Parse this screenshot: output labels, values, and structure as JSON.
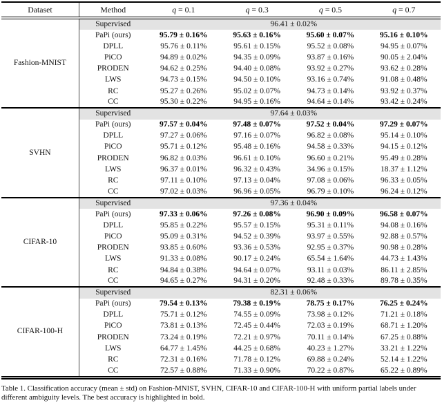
{
  "table": {
    "columns": {
      "dataset": "Dataset",
      "method": "Method",
      "q_headers": [
        {
          "sym": "q",
          "rest": " = 0.1"
        },
        {
          "sym": "q",
          "rest": " = 0.3"
        },
        {
          "sym": "q",
          "rest": " = 0.5"
        },
        {
          "sym": "q",
          "rest": " = 0.7"
        }
      ]
    },
    "sections": [
      {
        "dataset": "Fashion-MNIST",
        "supervised_label": "Supervised",
        "supervised_value": "96.41 ± 0.02%",
        "rows": [
          {
            "method": "PaPi (ours)",
            "bold": true,
            "values": [
              "95.79 ± 0.16%",
              "95.63 ± 0.16%",
              "95.60 ± 0.07%",
              "95.16 ± 0.10%"
            ]
          },
          {
            "method": "DPLL",
            "bold": false,
            "values": [
              "95.76 ± 0.11%",
              "95.61 ± 0.15%",
              "95.52 ± 0.08%",
              "94.95 ± 0.07%"
            ]
          },
          {
            "method": "PiCO",
            "bold": false,
            "values": [
              "94.89 ± 0.02%",
              "94.35 ± 0.09%",
              "93.87 ± 0.16%",
              "90.05 ± 2.04%"
            ]
          },
          {
            "method": "PRODEN",
            "bold": false,
            "values": [
              "94.62 ± 0.25%",
              "94.40 ± 0.08%",
              "93.92 ± 0.27%",
              "93.62 ± 0.28%"
            ]
          },
          {
            "method": "LWS",
            "bold": false,
            "values": [
              "94.73 ± 0.15%",
              "94.50 ± 0.10%",
              "93.16 ± 0.74%",
              "91.08 ± 0.48%"
            ]
          },
          {
            "method": "RC",
            "bold": false,
            "values": [
              "95.27 ± 0.26%",
              "95.02 ± 0.07%",
              "94.73 ± 0.14%",
              "93.92 ± 0.37%"
            ]
          },
          {
            "method": "CC",
            "bold": false,
            "values": [
              "95.30 ± 0.22%",
              "94.95 ± 0.16%",
              "94.64 ± 0.14%",
              "93.42 ± 0.24%"
            ]
          }
        ]
      },
      {
        "dataset": "SVHN",
        "supervised_label": "Supervised",
        "supervised_value": "97.64 ± 0.03%",
        "rows": [
          {
            "method": "PaPi (ours)",
            "bold": true,
            "values": [
              "97.57 ± 0.04%",
              "97.48 ± 0.07%",
              "97.52 ± 0.04%",
              "97.29 ± 0.07%"
            ]
          },
          {
            "method": "DPLL",
            "bold": false,
            "values": [
              "97.27 ± 0.06%",
              "97.16 ± 0.07%",
              "96.82 ± 0.08%",
              "95.14 ± 0.10%"
            ]
          },
          {
            "method": "PiCO",
            "bold": false,
            "values": [
              "95.71 ± 0.12%",
              "95.48 ± 0.16%",
              "94.58 ± 0.33%",
              "94.15 ± 0.12%"
            ]
          },
          {
            "method": "PRODEN",
            "bold": false,
            "values": [
              "96.82 ± 0.03%",
              "96.61 ± 0.10%",
              "96.60 ± 0.21%",
              "95.49 ± 0.28%"
            ]
          },
          {
            "method": "LWS",
            "bold": false,
            "values": [
              "96.37 ± 0.01%",
              "96.32 ± 0.43%",
              "34.96 ± 0.15%",
              "18.37 ± 1.12%"
            ]
          },
          {
            "method": "RC",
            "bold": false,
            "values": [
              "97.11 ± 0.10%",
              "97.13 ± 0.04%",
              "97.08 ± 0.06%",
              "96.33 ± 0.05%"
            ]
          },
          {
            "method": "CC",
            "bold": false,
            "values": [
              "97.02 ± 0.03%",
              "96.96 ± 0.05%",
              "96.79 ± 0.10%",
              "96.24 ± 0.12%"
            ]
          }
        ]
      },
      {
        "dataset": "CIFAR-10",
        "supervised_label": "Supervised",
        "supervised_value": "97.36 ± 0.04%",
        "rows": [
          {
            "method": "PaPi (ours)",
            "bold": true,
            "values": [
              "97.33 ± 0.06%",
              "97.26 ± 0.08%",
              "96.90 ± 0.09%",
              "96.58 ± 0.07%"
            ]
          },
          {
            "method": "DPLL",
            "bold": false,
            "values": [
              "95.85 ± 0.22%",
              "95.57 ± 0.15%",
              "95.31 ± 0.11%",
              "94.08 ± 0.16%"
            ]
          },
          {
            "method": "PiCO",
            "bold": false,
            "values": [
              "95.09 ± 0.31%",
              "94.52 ± 0.39%",
              "93.97 ± 0.55%",
              "92.88 ± 0.57%"
            ]
          },
          {
            "method": "PRODEN",
            "bold": false,
            "values": [
              "93.85 ± 0.60%",
              "93.36 ± 0.53%",
              "92.95 ± 0.37%",
              "90.98 ± 0.28%"
            ]
          },
          {
            "method": "LWS",
            "bold": false,
            "values": [
              "91.33 ± 0.08%",
              "90.17 ± 0.24%",
              "65.54 ± 1.64%",
              "44.73 ± 1.43%"
            ]
          },
          {
            "method": "RC",
            "bold": false,
            "values": [
              "94.84 ± 0.38%",
              "94.64 ± 0.07%",
              "93.11 ± 0.03%",
              "86.11 ± 2.85%"
            ]
          },
          {
            "method": "CC",
            "bold": false,
            "values": [
              "94.65 ± 0.27%",
              "94.31 ± 0.20%",
              "92.48 ± 0.33%",
              "89.78 ± 0.35%"
            ]
          }
        ]
      },
      {
        "dataset": "CIFAR-100-H",
        "supervised_label": "Supervised",
        "supervised_value": "82.31 ± 0.06%",
        "rows": [
          {
            "method": "PaPi (ours)",
            "bold": true,
            "values": [
              "79.54 ± 0.13%",
              "79.38 ± 0.19%",
              "78.75 ± 0.17%",
              "76.25 ± 0.24%"
            ]
          },
          {
            "method": "DPLL",
            "bold": false,
            "values": [
              "75.71 ± 0.12%",
              "74.55 ± 0.09%",
              "73.98 ± 0.12%",
              "71.21 ± 0.18%"
            ]
          },
          {
            "method": "PiCO",
            "bold": false,
            "values": [
              "73.81 ± 0.13%",
              "72.45 ± 0.44%",
              "72.03 ± 0.19%",
              "68.71 ± 1.20%"
            ]
          },
          {
            "method": "PRODEN",
            "bold": false,
            "values": [
              "73.24 ± 0.19%",
              "72.21 ± 0.97%",
              "70.11 ± 0.14%",
              "67.25 ± 0.88%"
            ]
          },
          {
            "method": "LWS",
            "bold": false,
            "values": [
              "64.77 ± 1.45%",
              "44.25 ± 0.68%",
              "40.23 ± 1.27%",
              "33.21 ± 1.22%"
            ]
          },
          {
            "method": "RC",
            "bold": false,
            "values": [
              "72.31 ± 0.16%",
              "71.78 ± 0.12%",
              "69.88 ± 0.24%",
              "52.14 ± 1.22%"
            ]
          },
          {
            "method": "CC",
            "bold": false,
            "values": [
              "72.57 ± 0.88%",
              "71.33 ± 0.90%",
              "70.22 ± 0.87%",
              "65.22 ± 0.89%"
            ]
          }
        ]
      }
    ]
  },
  "caption": "Table 1. Classification accuracy (mean ± std) on Fashion-MNIST, SVHN, CIFAR-10 and CIFAR-100-H with uniform partial labels under different ambiguity levels. The best accuracy is highlighted in bold."
}
